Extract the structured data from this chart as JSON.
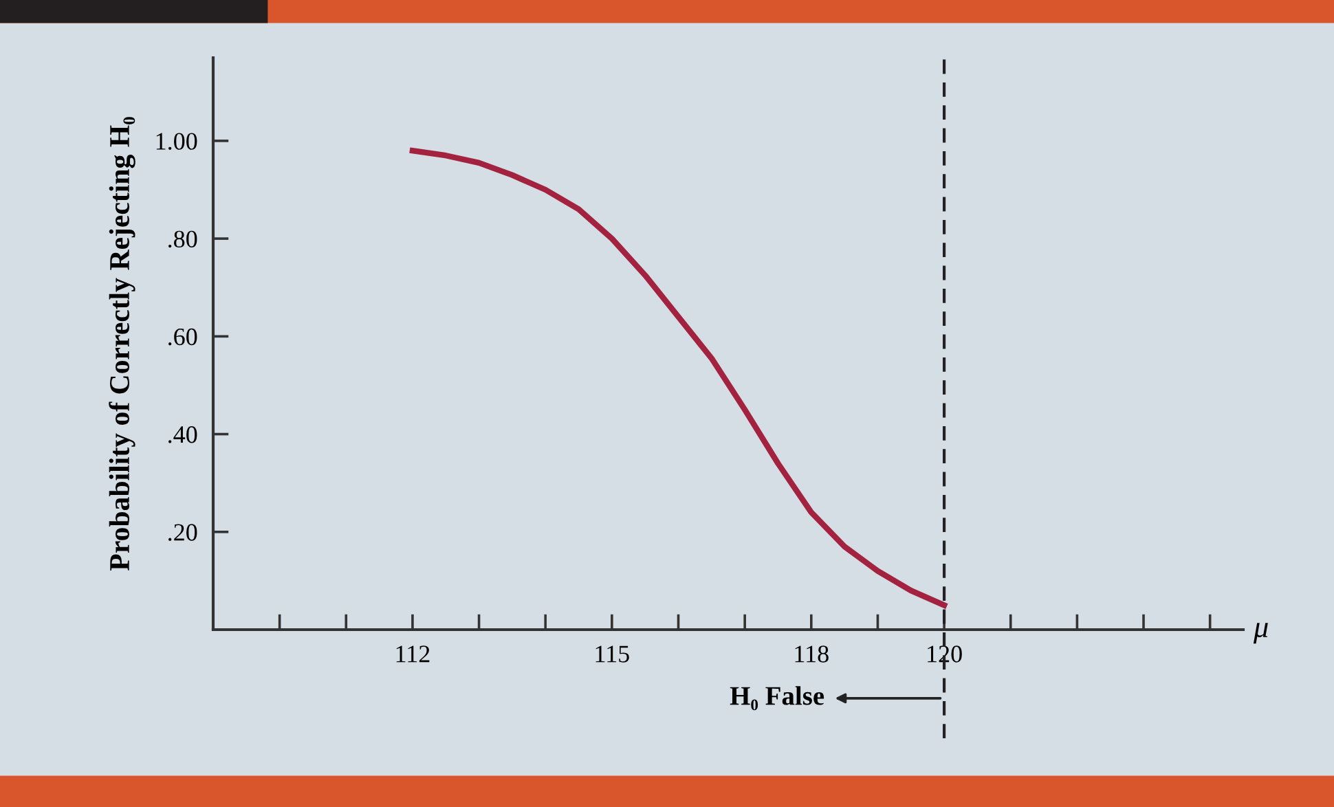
{
  "chart_data": {
    "type": "line",
    "ylabel": "Probability of Correctly Rejecting H₀",
    "xlabel": "μ",
    "x": [
      112,
      112.5,
      113,
      113.5,
      114,
      114.5,
      115,
      115.5,
      116,
      116.5,
      117,
      117.5,
      118,
      118.5,
      119,
      119.5,
      120
    ],
    "series": [
      {
        "color": "#a3223f",
        "values": [
          0.98,
          0.97,
          0.955,
          0.93,
          0.9,
          0.86,
          0.8,
          0.725,
          0.64,
          0.555,
          0.45,
          0.34,
          0.24,
          0.17,
          0.12,
          0.08,
          0.05
        ]
      }
    ],
    "xlim": [
      109,
      124.5
    ],
    "ylim": [
      0,
      1.17
    ],
    "xticks": [
      {
        "value": 110,
        "label": null
      },
      {
        "value": 111,
        "label": null
      },
      112,
      {
        "value": 113,
        "label": null
      },
      {
        "value": 114,
        "label": null
      },
      115,
      {
        "value": 116,
        "label": null
      },
      {
        "value": 117,
        "label": null
      },
      118,
      {
        "value": 119,
        "label": null
      },
      120,
      {
        "value": 121,
        "label": null
      },
      {
        "value": 122,
        "label": null
      },
      {
        "value": 123,
        "label": null
      },
      {
        "value": 124,
        "label": null
      }
    ],
    "yticks": [
      {
        "value": 0.2,
        "label": ".20"
      },
      {
        "value": 0.4,
        "label": ".40"
      },
      {
        "value": 0.6,
        "label": ".60"
      },
      {
        "value": 0.8,
        "label": ".80"
      },
      {
        "value": 1.0,
        "label": "1.00"
      }
    ],
    "ref_lines": [
      {
        "axis": "x",
        "value": 120,
        "label": "H₀ False",
        "color": "#222222",
        "line_style": "dashed"
      }
    ],
    "grid": false,
    "legend": false,
    "marker": "none",
    "line_style": "solid"
  }
}
